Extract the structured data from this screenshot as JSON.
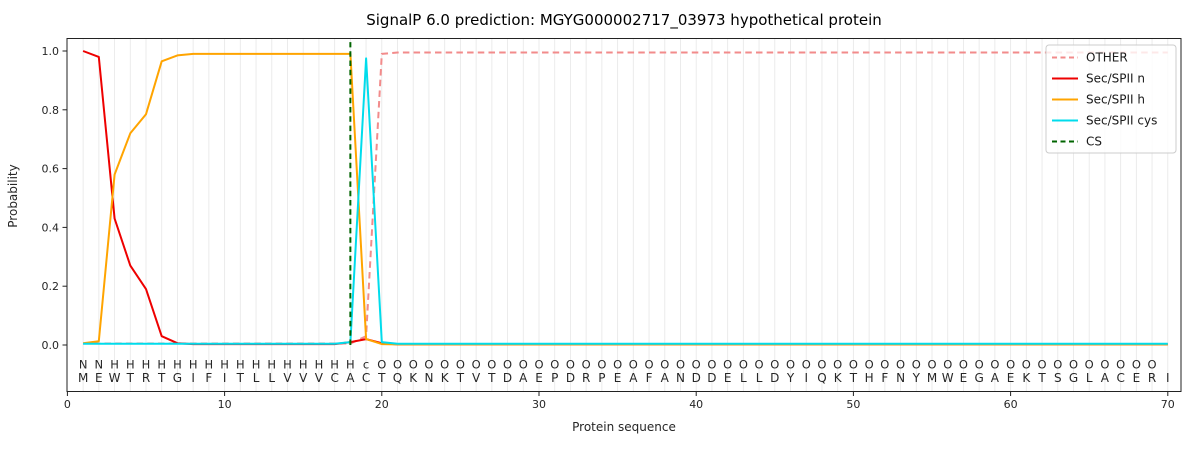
{
  "chart_data": {
    "type": "line",
    "title": "SignalP 6.0 prediction: MGYG000002717_03973 hypothetical protein",
    "xlabel": "Protein sequence",
    "ylabel": "Probability",
    "x_ticks": [
      0,
      10,
      20,
      30,
      40,
      50,
      60,
      70
    ],
    "y_ticks": [
      0.0,
      0.2,
      0.4,
      0.6,
      0.8,
      1.0
    ],
    "xlim": [
      -0.1,
      70.8
    ],
    "ylim": [
      -0.16,
      1.04
    ],
    "grid": "vertical-per-residue-light",
    "legend_position": "upper right",
    "x": [
      1,
      2,
      3,
      4,
      5,
      6,
      7,
      8,
      9,
      10,
      11,
      12,
      13,
      14,
      15,
      16,
      17,
      18,
      19,
      20,
      21,
      22,
      23,
      24,
      25,
      26,
      27,
      28,
      29,
      30,
      31,
      32,
      33,
      34,
      35,
      36,
      37,
      38,
      39,
      40,
      41,
      42,
      43,
      44,
      45,
      46,
      47,
      48,
      49,
      50,
      51,
      52,
      53,
      54,
      55,
      56,
      57,
      58,
      59,
      60,
      61,
      62,
      63,
      64,
      65,
      66,
      67,
      68,
      69,
      70
    ],
    "sequence": "MEWTRTGIFITLLVVVCACTQKNKTVTDAEPDRPEAFANDDELLDYIQKTHFNYMWEGAEKTSGLACERI",
    "region_labels": "NNHHHHHHHHHHHHHHHHcOOOOOOOOOOOOOOOOOOOOOOOOOOOOOOOOOOOOOOOOOOOOOOOOOO",
    "region_label_colors": {
      "N": "#ee0000",
      "H": "#ffa400",
      "c": "#00c8dc",
      "O": "#8a8a8a"
    },
    "sequence_color": "#262626",
    "cs_position": 18,
    "series": [
      {
        "name": "OTHER",
        "color": "#f28b8b",
        "dash": true,
        "values": [
          0.005,
          0.005,
          0.005,
          0.005,
          0.005,
          0.005,
          0.005,
          0.005,
          0.005,
          0.005,
          0.005,
          0.005,
          0.005,
          0.005,
          0.005,
          0.005,
          0.005,
          0.005,
          0.03,
          0.99,
          0.995,
          0.995,
          0.995,
          0.995,
          0.995,
          0.995,
          0.995,
          0.995,
          0.995,
          0.995,
          0.995,
          0.995,
          0.995,
          0.995,
          0.995,
          0.995,
          0.995,
          0.995,
          0.995,
          0.995,
          0.995,
          0.995,
          0.995,
          0.995,
          0.995,
          0.995,
          0.995,
          0.995,
          0.995,
          0.995,
          0.995,
          0.995,
          0.995,
          0.995,
          0.995,
          0.995,
          0.995,
          0.995,
          0.995,
          0.995,
          0.995,
          0.995,
          0.995,
          0.995,
          0.995,
          0.995,
          0.995,
          0.995,
          0.995,
          0.995
        ]
      },
      {
        "name": "Sec/SPII n",
        "color": "#ee0000",
        "dash": false,
        "values": [
          1.0,
          0.98,
          0.43,
          0.27,
          0.19,
          0.03,
          0.006,
          0.003,
          0.003,
          0.003,
          0.003,
          0.003,
          0.003,
          0.003,
          0.003,
          0.003,
          0.003,
          0.01,
          0.02,
          0.006,
          0.002,
          0.002,
          0.002,
          0.002,
          0.002,
          0.002,
          0.002,
          0.002,
          0.002,
          0.002,
          0.002,
          0.002,
          0.002,
          0.002,
          0.002,
          0.002,
          0.002,
          0.002,
          0.002,
          0.002,
          0.002,
          0.002,
          0.002,
          0.002,
          0.002,
          0.002,
          0.002,
          0.002,
          0.002,
          0.002,
          0.002,
          0.002,
          0.002,
          0.002,
          0.002,
          0.002,
          0.002,
          0.002,
          0.002,
          0.002,
          0.002,
          0.002,
          0.002,
          0.002,
          0.002,
          0.002,
          0.002,
          0.002,
          0.002,
          0.002
        ]
      },
      {
        "name": "Sec/SPII h",
        "color": "#ffa400",
        "dash": false,
        "values": [
          0.006,
          0.013,
          0.58,
          0.72,
          0.785,
          0.965,
          0.985,
          0.99,
          0.99,
          0.99,
          0.99,
          0.99,
          0.99,
          0.99,
          0.99,
          0.99,
          0.99,
          0.99,
          0.02,
          0.003,
          0.002,
          0.002,
          0.002,
          0.002,
          0.002,
          0.002,
          0.002,
          0.002,
          0.002,
          0.002,
          0.002,
          0.002,
          0.002,
          0.002,
          0.002,
          0.002,
          0.002,
          0.002,
          0.002,
          0.002,
          0.002,
          0.002,
          0.002,
          0.002,
          0.002,
          0.002,
          0.002,
          0.002,
          0.002,
          0.002,
          0.002,
          0.002,
          0.002,
          0.002,
          0.002,
          0.002,
          0.002,
          0.002,
          0.002,
          0.002,
          0.002,
          0.002,
          0.002,
          0.002,
          0.002,
          0.002,
          0.002,
          0.002,
          0.002,
          0.002
        ]
      },
      {
        "name": "Sec/SPII cys",
        "color": "#00dcec",
        "dash": false,
        "values": [
          0.004,
          0.004,
          0.004,
          0.004,
          0.004,
          0.004,
          0.004,
          0.004,
          0.004,
          0.004,
          0.004,
          0.004,
          0.004,
          0.004,
          0.004,
          0.004,
          0.004,
          0.01,
          0.975,
          0.01,
          0.004,
          0.004,
          0.004,
          0.004,
          0.004,
          0.004,
          0.004,
          0.004,
          0.004,
          0.004,
          0.004,
          0.004,
          0.004,
          0.004,
          0.004,
          0.004,
          0.004,
          0.004,
          0.004,
          0.004,
          0.004,
          0.004,
          0.004,
          0.004,
          0.004,
          0.004,
          0.004,
          0.004,
          0.004,
          0.004,
          0.004,
          0.004,
          0.004,
          0.004,
          0.004,
          0.004,
          0.004,
          0.004,
          0.004,
          0.004,
          0.004,
          0.004,
          0.004,
          0.004,
          0.004,
          0.004,
          0.004,
          0.004,
          0.004,
          0.004
        ]
      },
      {
        "name": "CS",
        "color": "#006400",
        "dash": true,
        "vline_x": 18,
        "vline_top": 1.03
      }
    ]
  },
  "style": {
    "grid_color": "#e9e9e9",
    "spine_color": "#222222",
    "tick_color": "#222222",
    "legend_border": "#cccccc",
    "legend_bg": "rgba(255,255,255,0.8)"
  }
}
